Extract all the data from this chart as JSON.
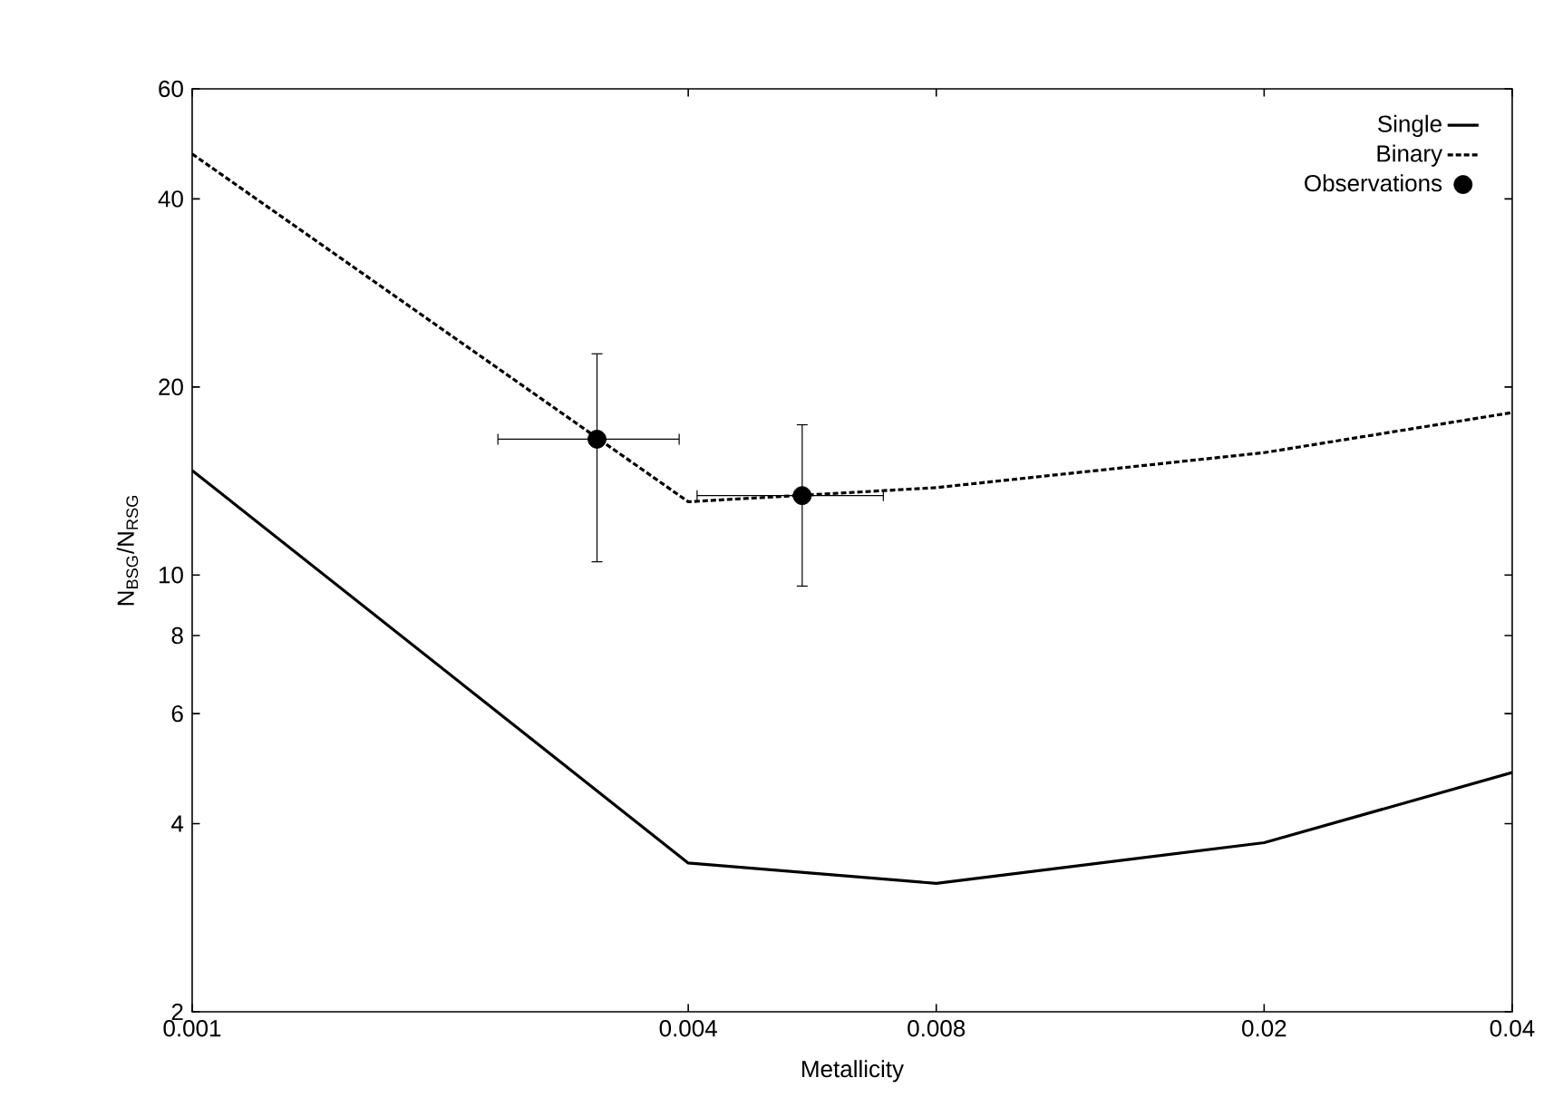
{
  "chart_data": {
    "type": "line",
    "xlabel": "Metallicity",
    "ylabel": "N$_{BSG}$/N$_{RSG}$",
    "log": "xy",
    "xlim": [
      0.001,
      0.04
    ],
    "ylim": [
      2,
      60
    ],
    "xticks": [
      0.001,
      0.004,
      0.008,
      0.02,
      0.04
    ],
    "yticks": [
      2,
      4,
      6,
      8,
      10,
      20,
      40,
      60
    ],
    "legend": "top right",
    "grid": false,
    "series": [
      {
        "name": "Single",
        "color": "#000000",
        "line_style": "solid",
        "marker": "none",
        "x": [
          0.001,
          0.004,
          0.008,
          0.02,
          0.04
        ],
        "values": [
          14.7,
          3.46,
          3.21,
          3.73,
          4.83
        ]
      },
      {
        "name": "Binary",
        "color": "#000000",
        "line_style": "dashed",
        "marker": "none",
        "x": [
          0.001,
          0.004,
          0.008,
          0.02,
          0.04
        ],
        "values": [
          47.2,
          13.1,
          13.8,
          15.7,
          18.2
        ]
      },
      {
        "name": "Observations",
        "type": "scatter",
        "color": "#000000",
        "marker": "circle",
        "x": [
          0.0031,
          0.0055
        ],
        "values": [
          16.5,
          13.4
        ],
        "errors": [
          [
            10.5,
            22.6
          ],
          [
            9.6,
            17.4
          ]
        ],
        "xerrors": [
          [
            0.00235,
            0.0039
          ],
          [
            0.0041,
            0.0069
          ]
        ]
      }
    ]
  }
}
